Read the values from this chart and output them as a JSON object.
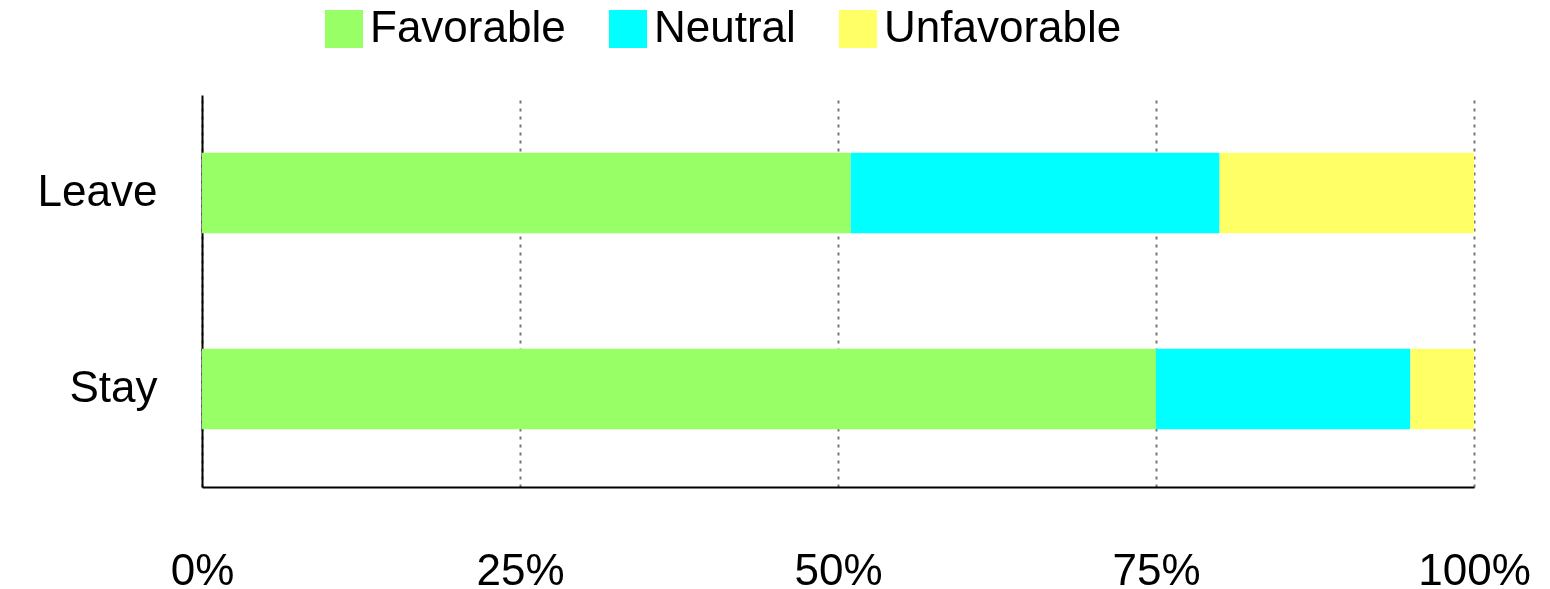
{
  "chart_data": {
    "type": "bar",
    "orientation": "horizontal",
    "stacked": true,
    "categories": [
      "Leave",
      "Stay"
    ],
    "series": [
      {
        "name": "Favorable",
        "color": "#99ff66",
        "values": [
          51,
          75
        ]
      },
      {
        "name": "Neutral",
        "color": "#00ffff",
        "values": [
          29,
          20
        ]
      },
      {
        "name": "Unfavorable",
        "color": "#ffff66",
        "values": [
          20,
          5
        ]
      }
    ],
    "xlim": [
      0,
      100
    ],
    "xticks": [
      {
        "value": 0,
        "label": "0%"
      },
      {
        "value": 25,
        "label": "25%"
      },
      {
        "value": 50,
        "label": "50%"
      },
      {
        "value": 75,
        "label": "75%"
      },
      {
        "value": 100,
        "label": "100%"
      }
    ],
    "grid": "x",
    "legend": "top"
  }
}
